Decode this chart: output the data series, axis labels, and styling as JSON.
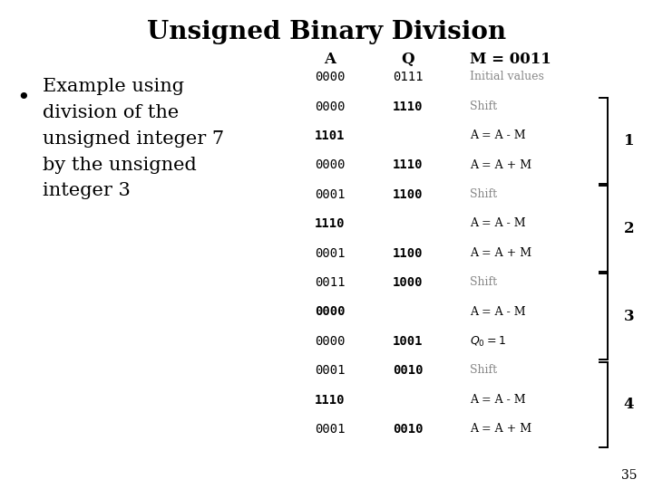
{
  "title": "Unsigned Binary Division",
  "bullet_text": "Example using\ndivision of the\nunsigned integer 7\nby the unsigned\ninteger 3",
  "bg_color": "#ffffff",
  "title_fontsize": 20,
  "body_fontsize": 15,
  "rows": [
    {
      "A": "0000",
      "Q": "0111",
      "note": "Initial values",
      "bold_A": false,
      "bold_Q": false,
      "note_gray": true
    },
    {
      "A": "0000",
      "Q": "1110",
      "note": "Shift",
      "bold_A": false,
      "bold_Q": true,
      "note_gray": true
    },
    {
      "A": "1101",
      "Q": "",
      "note": "A = A - M",
      "bold_A": true,
      "bold_Q": false,
      "note_gray": false
    },
    {
      "A": "0000",
      "Q": "1110",
      "note": "A = A + M",
      "bold_A": false,
      "bold_Q": true,
      "note_gray": false
    },
    {
      "A": "0001",
      "Q": "1100",
      "note": "Shift",
      "bold_A": false,
      "bold_Q": true,
      "note_gray": true
    },
    {
      "A": "1110",
      "Q": "",
      "note": "A = A - M",
      "bold_A": true,
      "bold_Q": false,
      "note_gray": false
    },
    {
      "A": "0001",
      "Q": "1100",
      "note": "A = A + M",
      "bold_A": false,
      "bold_Q": true,
      "note_gray": false
    },
    {
      "A": "0011",
      "Q": "1000",
      "note": "Shift",
      "bold_A": false,
      "bold_Q": true,
      "note_gray": true
    },
    {
      "A": "0000",
      "Q": "",
      "note": "A = A - M",
      "bold_A": true,
      "bold_Q": false,
      "note_gray": false
    },
    {
      "A": "0000",
      "Q": "1001",
      "note": "Q0 = 1",
      "bold_A": false,
      "bold_Q": true,
      "note_gray": false
    },
    {
      "A": "0001",
      "Q": "0010",
      "note": "Shift",
      "bold_A": false,
      "bold_Q": true,
      "note_gray": true
    },
    {
      "A": "1110",
      "Q": "",
      "note": "A = A - M",
      "bold_A": true,
      "bold_Q": false,
      "note_gray": false
    },
    {
      "A": "0001",
      "Q": "0010",
      "note": "A = A + M",
      "bold_A": false,
      "bold_Q": true,
      "note_gray": false
    }
  ],
  "brace_groups": [
    {
      "rows": [
        1,
        3
      ],
      "label": "1"
    },
    {
      "rows": [
        4,
        6
      ],
      "label": "2"
    },
    {
      "rows": [
        7,
        9
      ],
      "label": "3"
    },
    {
      "rows": [
        10,
        12
      ],
      "label": "4"
    }
  ],
  "page_number": "35"
}
